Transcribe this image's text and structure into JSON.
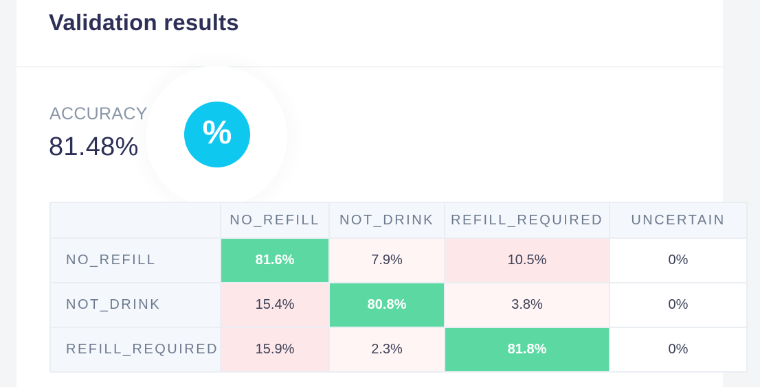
{
  "title": "Validation results",
  "metric": {
    "label": "ACCURACY",
    "value": "81.48%",
    "icon": "percent-icon",
    "icon_glyph": "%",
    "icon_color": "#0fc8ef"
  },
  "colors": {
    "diagonal": "#5cd9a3",
    "high_error": "#fde7e9",
    "low_error": "#fff5f5",
    "neutral": "#ffffff"
  },
  "confusion_matrix": {
    "columns": [
      "NO_REFILL",
      "NOT_DRINK",
      "REFILL_REQUIRED",
      "UNCERTAIN"
    ],
    "rows": [
      {
        "label": "NO_REFILL",
        "cells": [
          {
            "text": "81.6%",
            "tone": "diagonal"
          },
          {
            "text": "7.9%",
            "tone": "low_error"
          },
          {
            "text": "10.5%",
            "tone": "high_error"
          },
          {
            "text": "0%",
            "tone": "neutral"
          }
        ]
      },
      {
        "label": "NOT_DRINK",
        "cells": [
          {
            "text": "15.4%",
            "tone": "high_error"
          },
          {
            "text": "80.8%",
            "tone": "diagonal"
          },
          {
            "text": "3.8%",
            "tone": "low_error"
          },
          {
            "text": "0%",
            "tone": "neutral"
          }
        ]
      },
      {
        "label": "REFILL_REQUIRED",
        "cells": [
          {
            "text": "15.9%",
            "tone": "high_error"
          },
          {
            "text": "2.3%",
            "tone": "low_error"
          },
          {
            "text": "81.8%",
            "tone": "diagonal"
          },
          {
            "text": "0%",
            "tone": "neutral"
          }
        ]
      }
    ]
  }
}
